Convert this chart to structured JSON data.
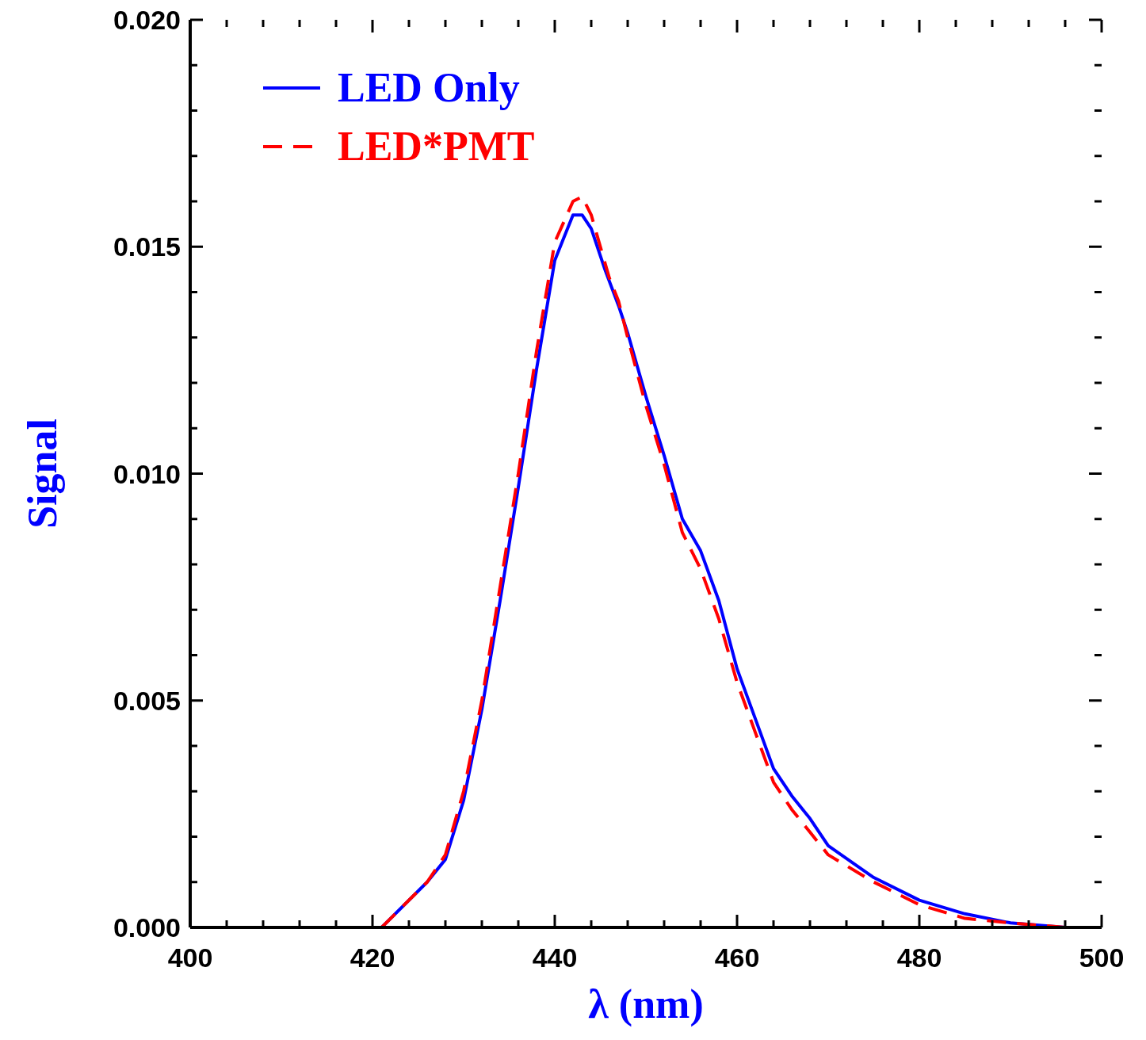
{
  "chart_data": {
    "type": "line",
    "xlabel": "λ (nm)",
    "ylabel": "Signal",
    "legend": "top left",
    "xlim": [
      400,
      500
    ],
    "ylim": [
      0,
      0.02
    ],
    "xticks": [
      400,
      {
        "value": 404,
        "label": null
      },
      {
        "value": 408,
        "label": null
      },
      {
        "value": 412,
        "label": null
      },
      {
        "value": 416,
        "label": null
      },
      420,
      {
        "value": 424,
        "label": null
      },
      {
        "value": 428,
        "label": null
      },
      {
        "value": 432,
        "label": null
      },
      {
        "value": 436,
        "label": null
      },
      440,
      {
        "value": 444,
        "label": null
      },
      {
        "value": 448,
        "label": null
      },
      {
        "value": 452,
        "label": null
      },
      {
        "value": 456,
        "label": null
      },
      460,
      {
        "value": 464,
        "label": null
      },
      {
        "value": 468,
        "label": null
      },
      {
        "value": 472,
        "label": null
      },
      {
        "value": 476,
        "label": null
      },
      480,
      {
        "value": 484,
        "label": null
      },
      {
        "value": 488,
        "label": null
      },
      {
        "value": 492,
        "label": null
      },
      {
        "value": 496,
        "label": null
      },
      500
    ],
    "yticks": [
      {
        "value": 0,
        "label": "0.000"
      },
      {
        "value": 0.001,
        "label": null
      },
      {
        "value": 0.002,
        "label": null
      },
      {
        "value": 0.003,
        "label": null
      },
      {
        "value": 0.004,
        "label": null
      },
      {
        "value": 0.005,
        "label": "0.005"
      },
      {
        "value": 0.006,
        "label": null
      },
      {
        "value": 0.007,
        "label": null
      },
      {
        "value": 0.008,
        "label": null
      },
      {
        "value": 0.009,
        "label": null
      },
      {
        "value": 0.01,
        "label": "0.010"
      },
      {
        "value": 0.011,
        "label": null
      },
      {
        "value": 0.012,
        "label": null
      },
      {
        "value": 0.013,
        "label": null
      },
      {
        "value": 0.014,
        "label": null
      },
      {
        "value": 0.015,
        "label": "0.015"
      },
      {
        "value": 0.016,
        "label": null
      },
      {
        "value": 0.017,
        "label": null
      },
      {
        "value": 0.018,
        "label": null
      },
      {
        "value": 0.019,
        "label": null
      },
      {
        "value": 0.02,
        "label": "0.020"
      }
    ],
    "series": [
      {
        "name": "LED Only",
        "color": "#0000ff",
        "line_style": "solid",
        "x": [
          421,
          426,
          428,
          430,
          432,
          434,
          436,
          438,
          440,
          441,
          442,
          443,
          444,
          445.5,
          447,
          448,
          450,
          452,
          454,
          456,
          458,
          460,
          462,
          464,
          466,
          468,
          470,
          475,
          480,
          485,
          490,
          496
        ],
        "values": [
          0,
          0.001,
          0.0015,
          0.0028,
          0.0048,
          0.0072,
          0.0097,
          0.0123,
          0.0147,
          0.0152,
          0.0157,
          0.0157,
          0.0154,
          0.0145,
          0.0137,
          0.0131,
          0.0117,
          0.0104,
          0.009,
          0.0083,
          0.0072,
          0.0057,
          0.0046,
          0.0035,
          0.0029,
          0.0024,
          0.0018,
          0.0011,
          0.0006,
          0.0003,
          0.0001,
          0
        ]
      },
      {
        "name": "LED*PMT",
        "color": "#ff0000",
        "line_style": "dashed",
        "x": [
          421,
          426,
          428,
          430,
          432,
          434,
          436,
          438,
          440,
          442,
          443,
          444,
          446,
          447,
          448,
          450,
          452,
          454,
          456,
          458,
          460,
          462,
          464,
          466,
          468,
          470,
          475,
          480,
          485,
          490,
          496
        ],
        "values": [
          0,
          0.001,
          0.0016,
          0.003,
          0.005,
          0.0075,
          0.01,
          0.0127,
          0.0151,
          0.016,
          0.0161,
          0.0157,
          0.0143,
          0.0138,
          0.013,
          0.0115,
          0.0102,
          0.0087,
          0.0079,
          0.0068,
          0.0054,
          0.0043,
          0.0032,
          0.0026,
          0.0021,
          0.0016,
          0.001,
          0.0005,
          0.0002,
          0.0001,
          0
        ]
      }
    ]
  }
}
